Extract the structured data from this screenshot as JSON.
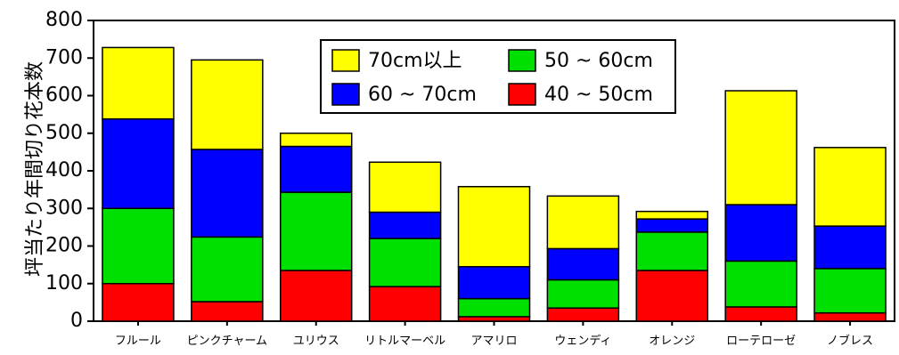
{
  "chart_data": {
    "type": "bar",
    "stacked": true,
    "title": "",
    "xlabel": "",
    "ylabel": "坪当たり年間切り花本数",
    "ylim": [
      0,
      800
    ],
    "yticks": [
      0,
      100,
      200,
      300,
      400,
      500,
      600,
      700,
      800
    ],
    "grid": false,
    "legend_position": "top-center",
    "categories": [
      "フルール",
      "ピンクチャーム",
      "ユリウス",
      "リトルマーベル",
      "アマリロ",
      "ウェンディ",
      "オレンジ",
      "ローテローゼ",
      "ノブレス"
    ],
    "series": [
      {
        "name": "40 ~ 50cm",
        "color": "#ff0000",
        "values": [
          100,
          52,
          135,
          92,
          12,
          35,
          135,
          38,
          22
        ]
      },
      {
        "name": "50 ~ 60cm",
        "color": "#00e000",
        "values": [
          200,
          172,
          208,
          128,
          48,
          75,
          102,
          122,
          118
        ]
      },
      {
        "name": "60 ~ 70cm",
        "color": "#0000ff",
        "values": [
          238,
          233,
          122,
          70,
          85,
          83,
          35,
          150,
          113
        ]
      },
      {
        "name": "70cm以上",
        "color": "#ffff00",
        "values": [
          190,
          238,
          35,
          133,
          213,
          140,
          20,
          303,
          209
        ]
      }
    ],
    "legend_order": [
      "70cm以上",
      "50 ~ 60cm",
      "60 ~ 70cm",
      "40 ~ 50cm"
    ]
  }
}
